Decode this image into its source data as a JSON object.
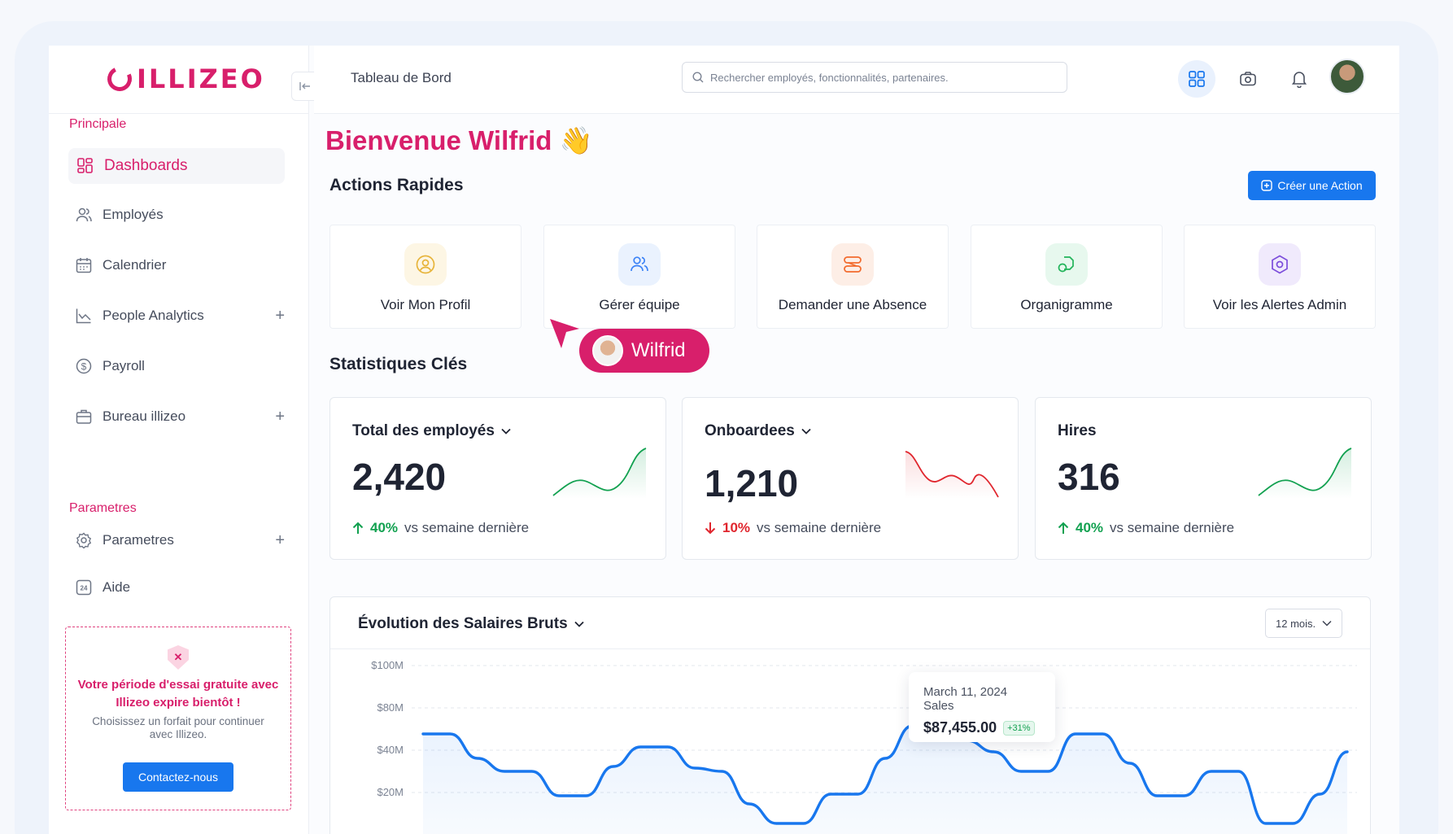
{
  "brand": {
    "name": "ILLIZEO",
    "accent": "#d81f6b",
    "primary": "#1877ee"
  },
  "sidebar": {
    "section_main": "Principale",
    "items": [
      {
        "label": "Dashboards",
        "icon": "dashboard-icon",
        "active": true
      },
      {
        "label": "Employés",
        "icon": "users-icon"
      },
      {
        "label": "Calendrier",
        "icon": "calendar-icon"
      },
      {
        "label": "People Analytics",
        "icon": "chart-line-icon",
        "expandable": true
      },
      {
        "label": "Payroll",
        "icon": "dollar-icon"
      },
      {
        "label": "Bureau illizeo",
        "icon": "briefcase-icon",
        "expandable": true
      }
    ],
    "section_settings": "Parametres",
    "settings_items": [
      {
        "label": "Parametres",
        "icon": "gear-icon",
        "expandable": true
      },
      {
        "label": "Aide",
        "icon": "help-24-icon"
      }
    ],
    "trial": {
      "title": "Votre période d'essai gratuite avec Illizeo expire bientôt !",
      "subtitle": "Choisissez un forfait pour continuer avec Illizeo.",
      "button": "Contactez-nous"
    }
  },
  "topbar": {
    "breadcrumb": "Tableau de Bord",
    "search_placeholder": "Rechercher employés, fonctionnalités, partenaires."
  },
  "main": {
    "welcome": "Bienvenue Wilfrid 👋",
    "quick_actions_title": "Actions Rapides",
    "create_action": "Créer une Action",
    "quick_actions": [
      {
        "label": "Voir Mon Profil",
        "icon": "user-circle-icon",
        "color": "#e7b43a"
      },
      {
        "label": "Gérer équipe",
        "icon": "team-icon",
        "color": "#3b82f6"
      },
      {
        "label": "Demander une Absence",
        "icon": "absence-icon",
        "color": "#f26b2e"
      },
      {
        "label": "Organigramme",
        "icon": "org-chart-icon",
        "color": "#22b45a"
      },
      {
        "label": "Voir les Alertes Admin",
        "icon": "alert-hex-icon",
        "color": "#7c4ddb"
      }
    ],
    "cursor_user": "Wilfrid",
    "stats_title": "Statistiques Clés",
    "stats": [
      {
        "title": "Total des employés",
        "value": "2,420",
        "pct": "40%",
        "trend": "up",
        "label": "vs semaine dernière",
        "dropdown": true
      },
      {
        "title": "Onboardees",
        "value": "1,210",
        "pct": "10%",
        "trend": "down",
        "label": "vs semaine dernière",
        "dropdown": true
      },
      {
        "title": "Hires",
        "value": "316",
        "pct": "40%",
        "trend": "up",
        "label": "vs semaine dernière",
        "dropdown": false
      }
    ],
    "chart_card": {
      "title": "Évolution des Salaires Bruts",
      "range": "12 mois.",
      "tooltip": {
        "date": "March 11, 2024 Sales",
        "value": "$87,455.00",
        "badge": "+31%"
      }
    }
  },
  "chart_data": {
    "type": "area",
    "title": "Évolution des Salaires Bruts",
    "y_ticks": [
      "$100M",
      "$80M",
      "$40M",
      "$20M"
    ],
    "series": [
      {
        "values": [
          73,
          73,
          58,
          50,
          50,
          35,
          35,
          53,
          65,
          65,
          52,
          50,
          30,
          18,
          18,
          36,
          36,
          58,
          78,
          85,
          69,
          62,
          50,
          50,
          73,
          73,
          55,
          35,
          35,
          50,
          50,
          18,
          18,
          36,
          62
        ]
      }
    ],
    "highlight": {
      "label": "March 11, 2024",
      "value": 87455
    },
    "grid": true
  }
}
